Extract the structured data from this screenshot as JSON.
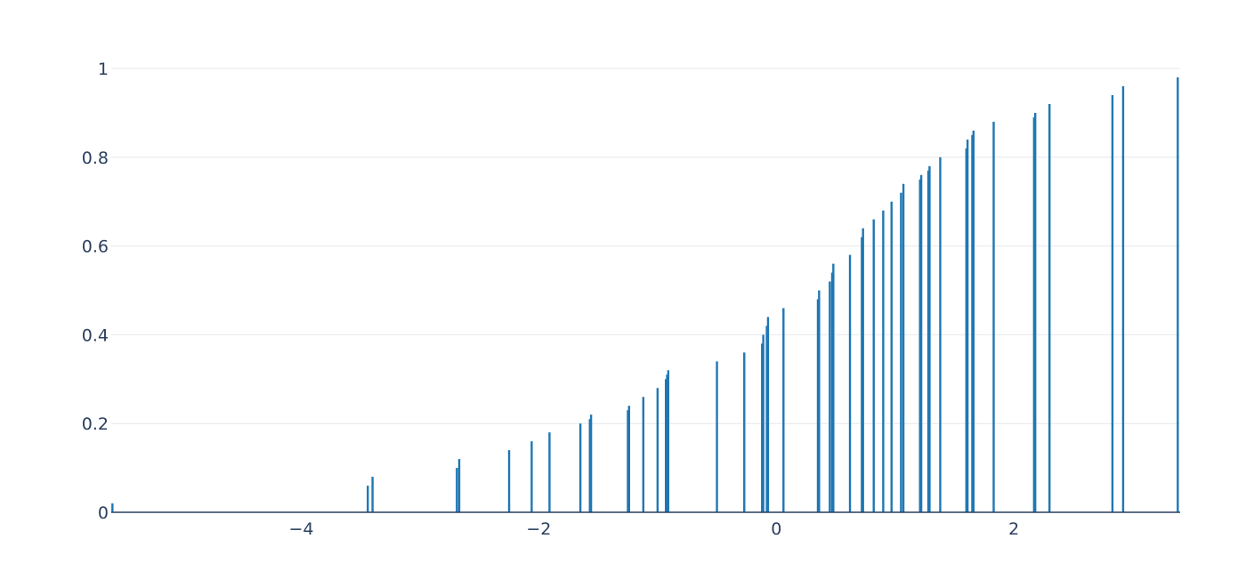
{
  "chart_data": {
    "type": "bar",
    "title": "",
    "xlabel": "",
    "ylabel": "",
    "xlim": [
      -5.6,
      3.4
    ],
    "ylim": [
      0,
      1
    ],
    "grid": true,
    "legend": "none",
    "bar_color": "#1f77b4",
    "x_ticks": [
      {
        "value": -4,
        "label": "−4"
      },
      {
        "value": -2,
        "label": "−2"
      },
      {
        "value": 0,
        "label": "0"
      },
      {
        "value": 2,
        "label": "2"
      }
    ],
    "y_ticks": [
      {
        "value": 0,
        "label": "0"
      },
      {
        "value": 0.2,
        "label": "0.2"
      },
      {
        "value": 0.4,
        "label": "0.4"
      },
      {
        "value": 0.6,
        "label": "0.6"
      },
      {
        "value": 0.8,
        "label": "0.8"
      },
      {
        "value": 1,
        "label": "1"
      }
    ],
    "x": [
      -5.59,
      -3.44,
      -3.4,
      -2.69,
      -2.67,
      -2.25,
      -2.06,
      -1.91,
      -1.65,
      -1.57,
      -1.56,
      -1.25,
      -1.24,
      -1.12,
      -1.0,
      -0.93,
      -0.92,
      -0.91,
      -0.5,
      -0.27,
      -0.12,
      -0.11,
      -0.08,
      -0.07,
      0.06,
      0.35,
      0.36,
      0.45,
      0.47,
      0.48,
      0.62,
      0.72,
      0.73,
      0.82,
      0.9,
      0.97,
      1.05,
      1.07,
      1.21,
      1.22,
      1.28,
      1.29,
      1.38,
      1.6,
      1.61,
      1.65,
      1.66,
      1.83,
      2.17,
      2.18,
      2.3,
      2.83,
      2.92,
      3.38
    ],
    "values": [
      0.02,
      0.06,
      0.08,
      0.1,
      0.12,
      0.14,
      0.16,
      0.18,
      0.2,
      0.21,
      0.22,
      0.23,
      0.24,
      0.26,
      0.28,
      0.3,
      0.31,
      0.32,
      0.34,
      0.36,
      0.38,
      0.4,
      0.42,
      0.44,
      0.46,
      0.48,
      0.5,
      0.52,
      0.54,
      0.56,
      0.58,
      0.62,
      0.64,
      0.66,
      0.68,
      0.7,
      0.72,
      0.74,
      0.75,
      0.76,
      0.77,
      0.78,
      0.8,
      0.82,
      0.84,
      0.85,
      0.86,
      0.88,
      0.89,
      0.9,
      0.92,
      0.94,
      0.96,
      0.98
    ]
  }
}
